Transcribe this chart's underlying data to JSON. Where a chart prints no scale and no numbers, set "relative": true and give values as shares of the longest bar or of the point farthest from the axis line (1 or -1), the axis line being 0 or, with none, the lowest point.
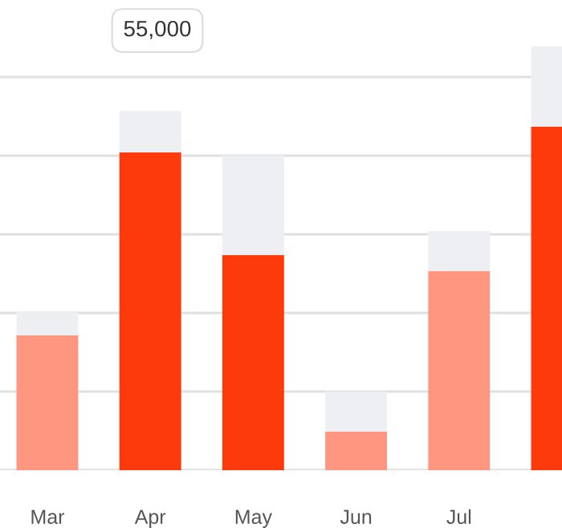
{
  "chart_data": {
    "type": "bar",
    "stacked": true,
    "relative": true,
    "grid": "y",
    "categories": [
      "Mar",
      "Apr",
      "May",
      "Jun",
      "Jul",
      null
    ],
    "series": [
      {
        "colors": [
          "#ff9680",
          "#fc3a0c",
          "#fc3a0c",
          "#ff9680",
          "#ff9680",
          "#fc3a0c"
        ],
        "values": [
          0.318,
          0.75,
          0.508,
          0.091,
          0.47,
          0.811
        ]
      },
      {
        "color": "#eeeff2",
        "values": [
          0.057,
          0.098,
          0.235,
          0.095,
          0.095,
          0.189
        ]
      }
    ],
    "annotations": [
      "55,000"
    ]
  }
}
